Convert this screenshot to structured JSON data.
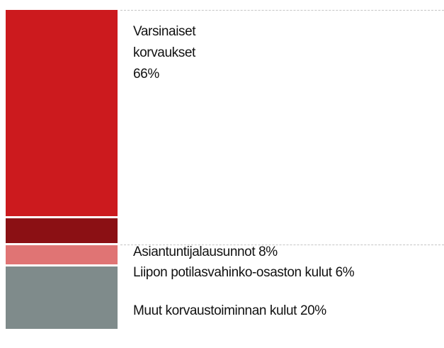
{
  "chart_data": {
    "type": "stacked-bar",
    "series": [
      {
        "name": "Varsinaiset korvaukset",
        "color": "#cc1a1e",
        "values": [
          66
        ],
        "value_labels": [
          "66%"
        ]
      },
      {
        "name": "Asiantuntijalausunnot",
        "color": "#8b1014",
        "values": [
          8
        ],
        "value_labels": [
          "8%"
        ]
      },
      {
        "name": "Liipon potilasvahinko-osaston kulut",
        "color": "#e07474",
        "values": [
          6
        ],
        "value_labels": [
          "6%"
        ]
      },
      {
        "name": "Muut korvaustoiminnan kulut",
        "color": "#7f8b8b",
        "values": [
          20
        ],
        "value_labels": [
          "20%"
        ]
      }
    ]
  }
}
